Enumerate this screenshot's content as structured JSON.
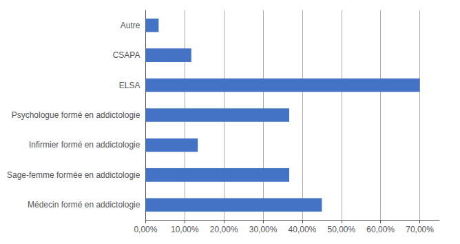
{
  "chart_data": {
    "type": "bar",
    "orientation": "horizontal",
    "categories": [
      "Médecin formé en addictologie",
      "Sage-femme formée en addictologie",
      "Infirmier formé en addictologie",
      "Psychologue formé en addictologie",
      "ELSA",
      "CSAPA",
      "Autre"
    ],
    "values": [
      0.45,
      0.3667,
      0.1333,
      0.3667,
      0.7,
      0.1167,
      0.0333
    ],
    "color": "#4472C4",
    "xlim": [
      0,
      0.75
    ],
    "xticks": [
      {
        "value": 0.0,
        "label": "0,00%"
      },
      {
        "value": 0.1,
        "label": "10,00%"
      },
      {
        "value": 0.2,
        "label": "20,00%"
      },
      {
        "value": 0.3,
        "label": "30,00%"
      },
      {
        "value": 0.4,
        "label": "40,00%"
      },
      {
        "value": 0.5,
        "label": "50,00%"
      },
      {
        "value": 0.6,
        "label": "60,00%"
      },
      {
        "value": 0.7,
        "label": "70,00%"
      }
    ],
    "grid": true
  }
}
